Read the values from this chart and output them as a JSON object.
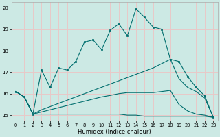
{
  "xlabel": "Humidex (Indice chaleur)",
  "bg_color": "#cce9e4",
  "grid_color": "#e8c8c8",
  "line_color": "#006e6e",
  "xlim": [
    0,
    23
  ],
  "ylim": [
    14.75,
    20.25
  ],
  "yticks": [
    15,
    16,
    17,
    18,
    19,
    20
  ],
  "xticks": [
    0,
    1,
    2,
    3,
    4,
    5,
    6,
    7,
    8,
    9,
    10,
    11,
    12,
    13,
    14,
    15,
    16,
    17,
    18,
    19,
    20,
    21,
    22,
    23
  ],
  "main_x": [
    0,
    1,
    2,
    3,
    4,
    5,
    6,
    7,
    8,
    9,
    10,
    11,
    12,
    13,
    14,
    15,
    16,
    17,
    18,
    19,
    20,
    21,
    22,
    23
  ],
  "main_y": [
    16.1,
    15.85,
    15.05,
    17.1,
    16.3,
    17.2,
    17.1,
    17.5,
    18.4,
    18.5,
    18.05,
    18.95,
    19.25,
    18.7,
    19.95,
    19.55,
    19.1,
    19.0,
    17.6,
    17.5,
    16.8,
    16.3,
    15.9,
    14.9
  ],
  "max_x": [
    0,
    1,
    2,
    3,
    4,
    5,
    6,
    7,
    8,
    9,
    10,
    11,
    12,
    13,
    14,
    15,
    16,
    17,
    18,
    19,
    20,
    21,
    22,
    23
  ],
  "max_y": [
    16.1,
    15.85,
    15.05,
    15.25,
    15.4,
    15.55,
    15.7,
    15.85,
    16.0,
    16.15,
    16.3,
    16.45,
    16.6,
    16.75,
    16.9,
    17.05,
    17.2,
    17.4,
    17.6,
    16.7,
    16.3,
    16.1,
    15.8,
    14.9
  ],
  "avg_x": [
    0,
    1,
    2,
    3,
    4,
    5,
    6,
    7,
    8,
    9,
    10,
    11,
    12,
    13,
    14,
    15,
    16,
    17,
    18,
    19,
    20,
    21,
    22,
    23
  ],
  "avg_y": [
    16.1,
    15.85,
    15.05,
    15.15,
    15.25,
    15.35,
    15.45,
    15.55,
    15.65,
    15.75,
    15.85,
    15.92,
    16.0,
    16.05,
    16.05,
    16.05,
    16.05,
    16.1,
    16.15,
    15.5,
    15.2,
    15.05,
    15.0,
    14.9
  ],
  "min_x": [
    0,
    1,
    2,
    3,
    4,
    5,
    6,
    7,
    8,
    9,
    10,
    11,
    12,
    13,
    14,
    15,
    16,
    17,
    18,
    19,
    20,
    21,
    22,
    23
  ],
  "min_y": [
    16.1,
    15.85,
    15.05,
    15.05,
    15.05,
    15.05,
    15.05,
    15.05,
    15.05,
    15.05,
    15.05,
    15.05,
    15.05,
    15.0,
    15.0,
    14.95,
    14.95,
    14.95,
    14.95,
    14.95,
    14.95,
    14.95,
    14.95,
    14.9
  ]
}
